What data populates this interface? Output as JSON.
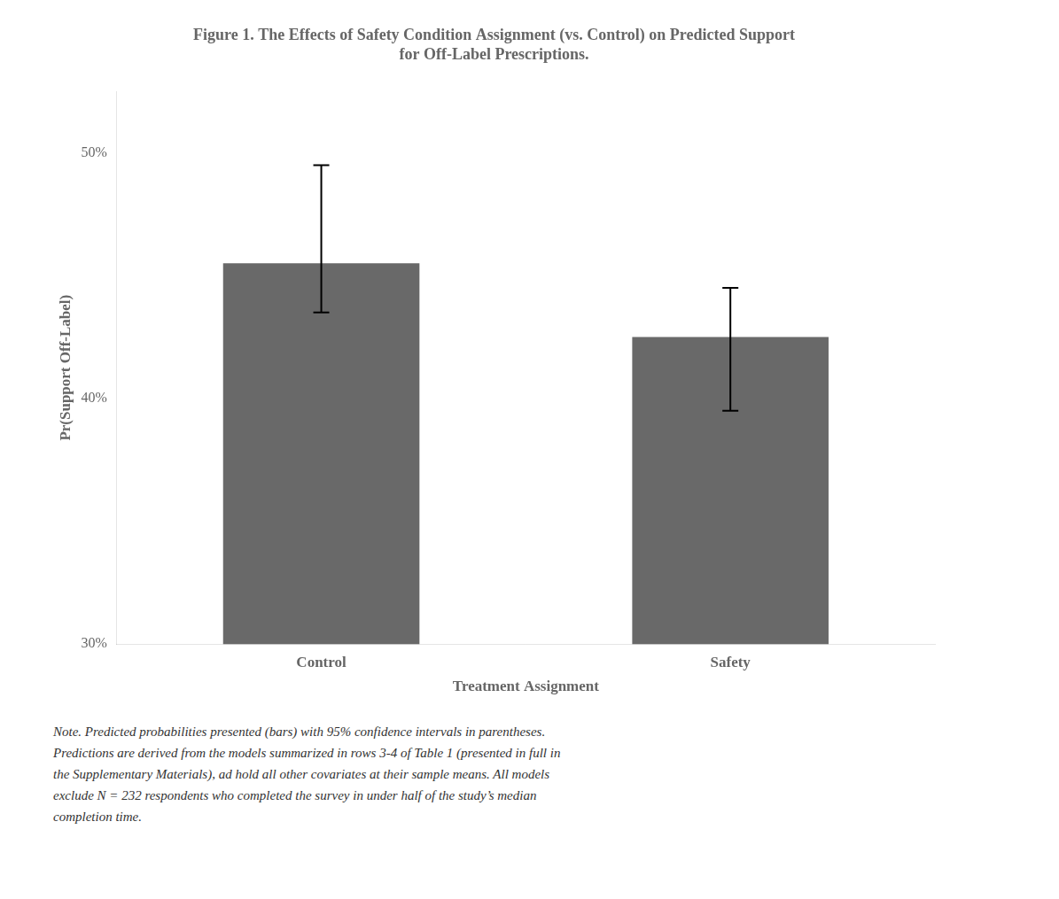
{
  "chart_data": {
    "type": "bar",
    "title": [
      "Figure 1. The Effects of Safety Condition Assignment (vs. Control) on Predicted Support",
      "for Off-Label Prescriptions."
    ],
    "categories": [
      "Control",
      "Safety"
    ],
    "values": [
      0.455,
      0.425
    ],
    "ci_lower": [
      0.435,
      0.395
    ],
    "ci_upper": [
      0.495,
      0.445
    ],
    "color": "#696969",
    "xlabel": "Treatment Assignment",
    "ylabel": "Pr(Support Off-Label)",
    "ylim": [
      0.3,
      0.525
    ],
    "yticks": [
      {
        "value": 0.3,
        "label": "30%"
      },
      {
        "value": 0.4,
        "label": "40%"
      },
      {
        "value": 0.5,
        "label": "50%"
      }
    ],
    "grid": false,
    "note": "Note. Predicted probabilities presented (bars) with 95% confidence intervals in parentheses.\nPredictions are derived from the models summarized in rows 3-4 of Table 1 (presented in full in\nthe Supplementary Materials), ad hold all other covariates at their sample means. All models\nexclude N = 232 respondents who completed the survey in under half of the study’s median\ncompletion time."
  }
}
